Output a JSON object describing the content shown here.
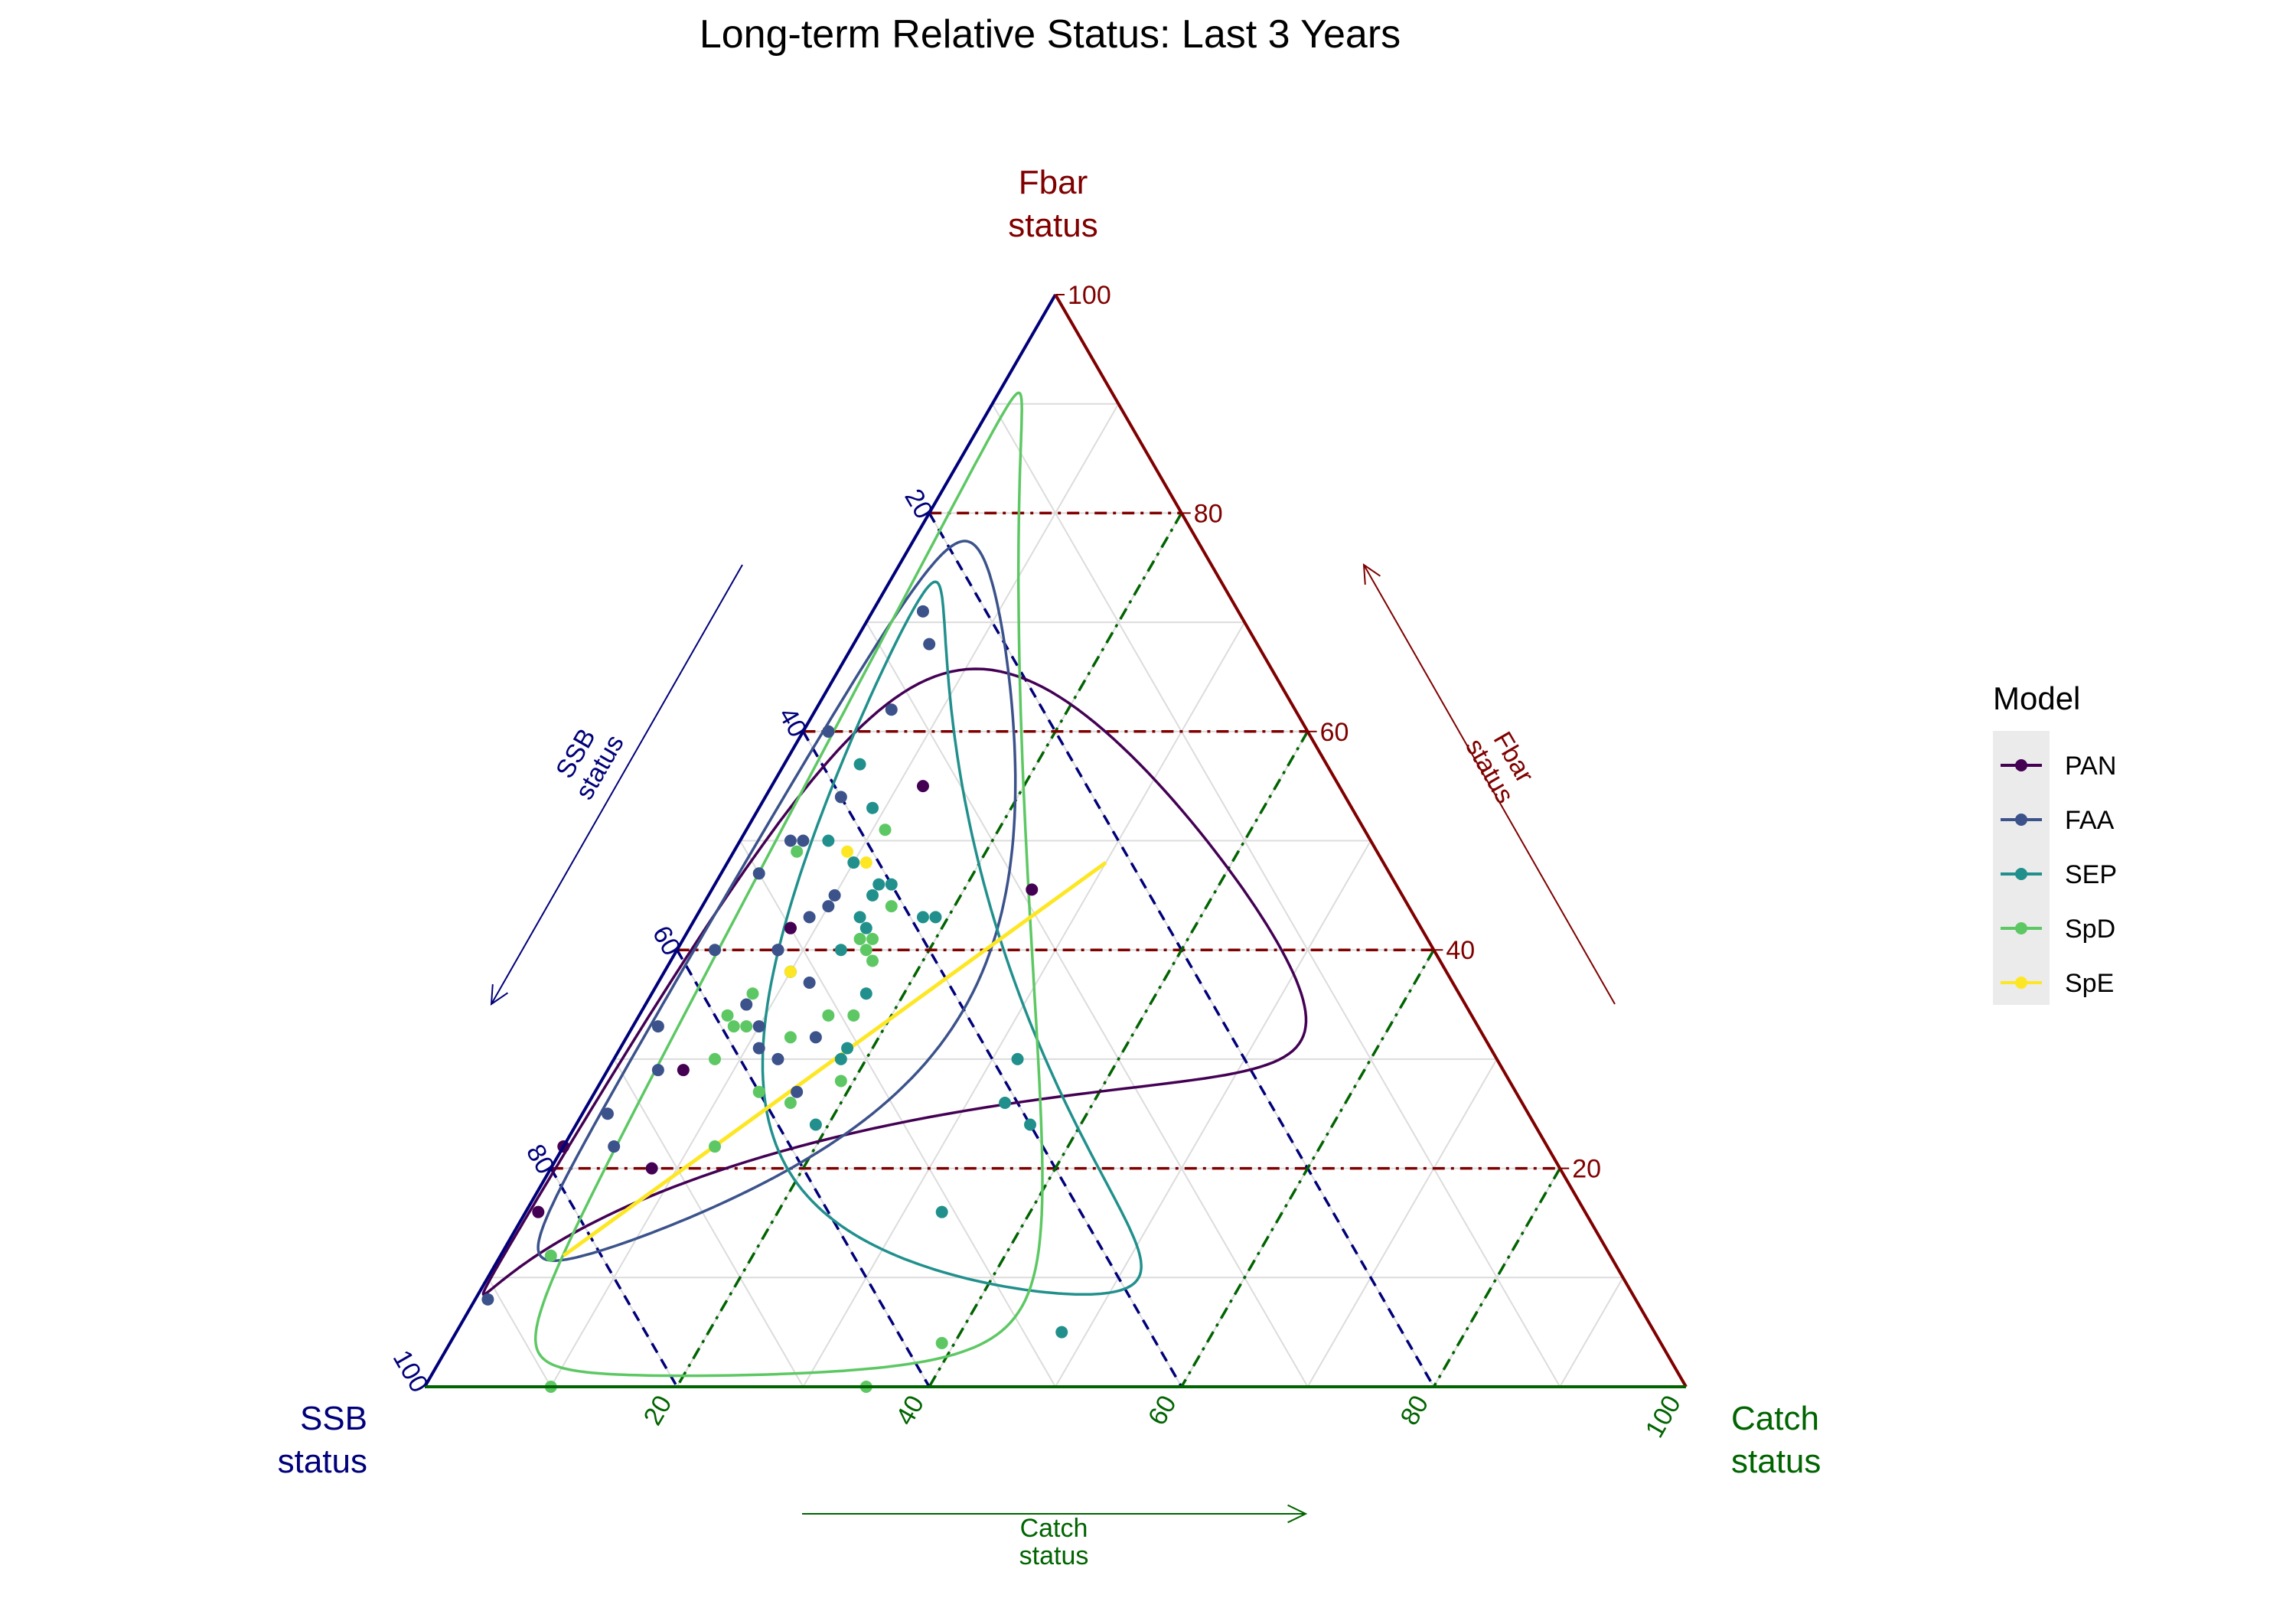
{
  "chart_data": {
    "type": "scatter",
    "subtype": "ternary",
    "title": "Long-term Relative Status: Last 3 Years",
    "axes": {
      "top": {
        "name": "Fbar",
        "sub": "status",
        "color": "#800000"
      },
      "left": {
        "name": "SSB",
        "sub": "status",
        "color": "#00007a"
      },
      "right": {
        "name": "Catch",
        "sub": "status",
        "color": "#006400"
      }
    },
    "ticks": {
      "fbar": [
        "20",
        "40",
        "60",
        "80",
        "100"
      ],
      "ssb": [
        "20",
        "40",
        "60",
        "80",
        "100"
      ],
      "catch": [
        "20",
        "40",
        "60",
        "80",
        "100"
      ]
    },
    "grid": true,
    "legend": {
      "title": "Model",
      "position": "right",
      "items": [
        {
          "name": "PAN",
          "color": "#440154"
        },
        {
          "name": "FAA",
          "color": "#3b528b"
        },
        {
          "name": "SEP",
          "color": "#21908c"
        },
        {
          "name": "SpD",
          "color": "#5dc863"
        },
        {
          "name": "SpE",
          "color": "#fde725"
        }
      ]
    },
    "series": [
      {
        "name": "PAN",
        "color": "#440154",
        "points": [
          [
            61,
            39,
            34
          ],
          [
            20,
            72,
            8
          ],
          [
            16,
            83,
            1
          ],
          [
            22,
            78,
            0
          ],
          [
            40,
            52,
            8
          ],
          [
            42,
            50,
            8
          ],
          [
            55,
            33,
            12
          ],
          [
            29,
            65,
            6
          ],
          [
            42,
            50,
            8
          ]
        ]
      },
      {
        "name": "FAA",
        "color": "#3b528b",
        "points": [
          [
            33,
            65,
            2
          ],
          [
            31,
            58,
            11
          ],
          [
            27,
            57,
            16
          ],
          [
            30,
            57,
            13
          ],
          [
            32,
            53,
            15
          ],
          [
            40,
            57,
            3
          ],
          [
            33,
            57,
            10
          ],
          [
            38,
            52,
            10
          ],
          [
            43,
            48,
            9
          ],
          [
            44,
            46,
            10
          ],
          [
            45,
            45,
            10
          ],
          [
            50,
            46,
            4
          ],
          [
            37,
            51,
            12
          ],
          [
            68,
            26,
            6
          ],
          [
            50,
            45,
            5
          ],
          [
            54,
            40,
            6
          ],
          [
            60,
            38,
            2
          ],
          [
            62,
            32,
            6
          ],
          [
            71,
            25,
            4
          ],
          [
            25,
            73,
            2
          ],
          [
            22,
            74,
            4
          ],
          [
            40,
            52,
            8
          ],
          [
            60,
            38,
            2
          ],
          [
            29,
            67,
            4
          ],
          [
            8,
            91,
            1
          ],
          [
            35,
            57,
            8
          ],
          [
            47,
            50,
            3
          ]
        ]
      },
      {
        "name": "SEP",
        "color": "#21908c",
        "points": [
          [
            40,
            47,
            13
          ],
          [
            30,
            52,
            18
          ],
          [
            36,
            47,
            17
          ],
          [
            24,
            57,
            19
          ],
          [
            43,
            44,
            13
          ],
          [
            48,
            42,
            10
          ],
          [
            43,
            39,
            18
          ],
          [
            46,
            40,
            14
          ],
          [
            24,
            40,
            36
          ],
          [
            43,
            38,
            19
          ],
          [
            31,
            51,
            18
          ],
          [
            26,
            41,
            33
          ],
          [
            46,
            41,
            13
          ],
          [
            50,
            43,
            7
          ],
          [
            53,
            38,
            9
          ],
          [
            57,
            37,
            6
          ],
          [
            42,
            44,
            14
          ],
          [
            16,
            51,
            33
          ],
          [
            45,
            42,
            13
          ],
          [
            5,
            47,
            48
          ],
          [
            30,
            38,
            32
          ]
        ]
      },
      {
        "name": "SpD",
        "color": "#5dc863",
        "points": [
          [
            33,
            59,
            8
          ],
          [
            33,
            58,
            9
          ],
          [
            36,
            56,
            8
          ],
          [
            30,
            62,
            8
          ],
          [
            34,
            59,
            7
          ],
          [
            27,
            60,
            13
          ],
          [
            22,
            66,
            12
          ],
          [
            32,
            55,
            13
          ],
          [
            34,
            51,
            15
          ],
          [
            38,
            52,
            10
          ],
          [
            34,
            49,
            17
          ],
          [
            40,
            45,
            15
          ],
          [
            39,
            45,
            16
          ],
          [
            41,
            45,
            14
          ],
          [
            41,
            44,
            15
          ],
          [
            26,
            58,
            16
          ],
          [
            49,
            46,
            5
          ],
          [
            51,
            38,
            11
          ],
          [
            44,
            41,
            15
          ],
          [
            28,
            53,
            19
          ],
          [
            4,
            57,
            39
          ],
          [
            0,
            90,
            10
          ],
          [
            12,
            84,
            4
          ],
          [
            0,
            65,
            35
          ]
        ]
      },
      {
        "name": "SpE",
        "color": "#fde725",
        "points": [
          [
            38,
            52,
            10
          ],
          [
            49,
            42,
            9
          ],
          [
            48,
            41,
            11
          ]
        ]
      }
    ],
    "fitted_lines": [
      {
        "series": "SpE",
        "from": [
          12,
          83,
          5
        ],
        "to": [
          48,
          22,
          30
        ]
      }
    ],
    "confidence_ellipses": [
      {
        "series": "PAN",
        "color": "#440154"
      },
      {
        "series": "FAA",
        "color": "#3b528b"
      },
      {
        "series": "SEP",
        "color": "#21908c"
      },
      {
        "series": "SpD",
        "color": "#5dc863"
      }
    ]
  }
}
